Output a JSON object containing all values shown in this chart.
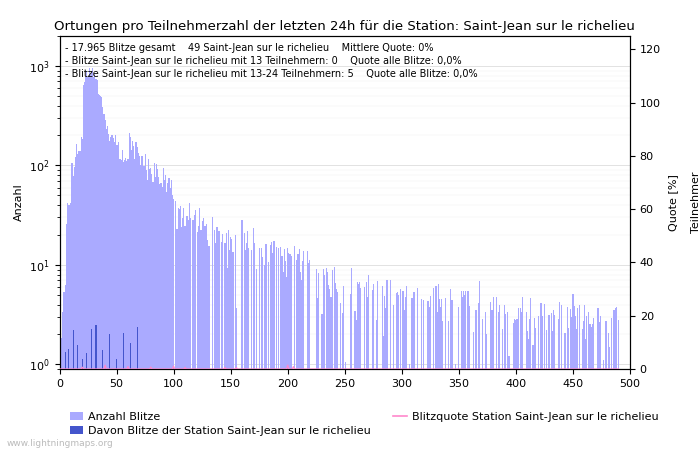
{
  "title": "Ortungen pro Teilnehmerzahl der letzten 24h für die Station: Saint-Jean sur le richelieu",
  "ylabel_left": "Anzahl",
  "ylabel_right": "Quote [%]",
  "xlabel_right": "Teilnehmer",
  "annotation_lines": [
    "17.965 Blitze gesamt    49 Saint-Jean sur le richelieu    Mittlere Quote: 0%",
    "Blitze Saint-Jean sur le richelieu mit 13 Teilnehmern: 0    Quote alle Blitze: 0,0%",
    "Blitze Saint-Jean sur le richelieu mit 13-24 Teilnehmern: 5    Quote alle Blitze: 0,0%"
  ],
  "watermark": "www.lightningmaps.org",
  "xlim": [
    0,
    500
  ],
  "ylim_right": [
    0,
    125
  ],
  "right_yticks": [
    0,
    20,
    40,
    60,
    80,
    100,
    120
  ],
  "background_color": "#ffffff",
  "bar_color_main": "#aaaaff",
  "bar_color_station": "#4455cc",
  "line_color_quote": "#ff88cc",
  "title_fontsize": 9.5,
  "annotation_fontsize": 7,
  "tick_fontsize": 8,
  "legend_fontsize": 8
}
